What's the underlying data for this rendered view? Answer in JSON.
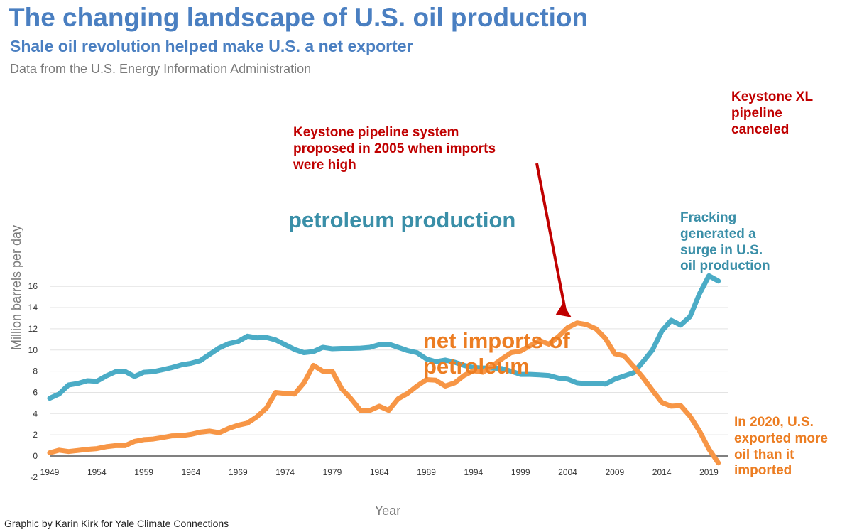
{
  "header": {
    "title": "The changing landscape of U.S. oil production",
    "subtitle": "Shale oil revolution helped make U.S. a net exporter",
    "source": "Data from the U.S. Energy Information Administration"
  },
  "credit": "Graphic by Karin Kirk for Yale Climate Connections",
  "annotations": {
    "keystone": "Keystone pipeline system\nproposed in 2005 when imports\nwere high",
    "keystone_xl": "Keystone XL\npipeline\ncanceled",
    "fracking": "Fracking\ngenerated a\nsurge in U.S.\noil production",
    "exported": "In 2020, U.S.\nexported more\noil than it\nimported"
  },
  "colors": {
    "production": "#4bacc6",
    "imports": "#f79646",
    "zero_line": "#808080",
    "grid": "#e3e3e3",
    "arrow": "#c00000"
  },
  "chart_data": {
    "type": "line",
    "title": "The changing landscape of U.S. oil production",
    "xlabel": "Year",
    "ylabel": "Million barrels per day",
    "ylim": [
      -2,
      16
    ],
    "yticks": [
      "-2",
      "0",
      "2",
      "4",
      "6",
      "8",
      "10",
      "12",
      "14",
      "16"
    ],
    "xticks": [
      "1949",
      "1954",
      "1959",
      "1964",
      "1969",
      "1974",
      "1979",
      "1984",
      "1989",
      "1994",
      "1999",
      "2004",
      "2009",
      "2014",
      "2019"
    ],
    "x": [
      1949,
      1950,
      1951,
      1952,
      1953,
      1954,
      1955,
      1956,
      1957,
      1958,
      1959,
      1960,
      1961,
      1962,
      1963,
      1964,
      1965,
      1966,
      1967,
      1968,
      1969,
      1970,
      1971,
      1972,
      1973,
      1974,
      1975,
      1976,
      1977,
      1978,
      1979,
      1980,
      1981,
      1982,
      1983,
      1984,
      1985,
      1986,
      1987,
      1988,
      1989,
      1990,
      1991,
      1992,
      1993,
      1994,
      1995,
      1996,
      1997,
      1998,
      1999,
      2000,
      2001,
      2002,
      2003,
      2004,
      2005,
      2006,
      2007,
      2008,
      2009,
      2010,
      2011,
      2012,
      2013,
      2014,
      2015,
      2016,
      2017,
      2018,
      2019,
      2020
    ],
    "series": [
      {
        "name": "petroleum production",
        "label": "petroleum production",
        "values": [
          5.45,
          5.85,
          6.7,
          6.85,
          7.1,
          7.05,
          7.55,
          7.95,
          7.98,
          7.5,
          7.9,
          7.95,
          8.15,
          8.35,
          8.6,
          8.75,
          9.0,
          9.6,
          10.2,
          10.6,
          10.8,
          11.3,
          11.15,
          11.18,
          10.95,
          10.5,
          10.05,
          9.75,
          9.85,
          10.25,
          10.12,
          10.15,
          10.15,
          10.18,
          10.25,
          10.5,
          10.55,
          10.25,
          9.95,
          9.75,
          9.15,
          8.9,
          9.05,
          8.85,
          8.55,
          8.35,
          8.3,
          8.3,
          8.25,
          8.0,
          7.7,
          7.7,
          7.65,
          7.6,
          7.35,
          7.25,
          6.9,
          6.82,
          6.85,
          6.78,
          7.25,
          7.55,
          7.85,
          8.9,
          10.0,
          11.8,
          12.8,
          12.35,
          13.15,
          15.3,
          17.0,
          16.5
        ]
      },
      {
        "name": "net imports of petroleum",
        "label": "net imports of\npetroleum",
        "values": [
          0.3,
          0.55,
          0.42,
          0.52,
          0.63,
          0.7,
          0.88,
          0.98,
          0.98,
          1.38,
          1.55,
          1.6,
          1.75,
          1.9,
          1.92,
          2.05,
          2.25,
          2.35,
          2.2,
          2.6,
          2.9,
          3.1,
          3.7,
          4.5,
          6.0,
          5.9,
          5.85,
          6.9,
          8.55,
          8.0,
          8.0,
          6.35,
          5.4,
          4.3,
          4.3,
          4.7,
          4.3,
          5.4,
          5.9,
          6.6,
          7.2,
          7.15,
          6.6,
          6.9,
          7.6,
          8.05,
          7.9,
          8.5,
          9.15,
          9.75,
          9.9,
          10.4,
          10.9,
          10.55,
          11.25,
          12.1,
          12.55,
          12.4,
          12.0,
          11.1,
          9.65,
          9.45,
          8.45,
          7.4,
          6.2,
          5.05,
          4.7,
          4.75,
          3.75,
          2.35,
          0.65,
          -0.65
        ]
      }
    ]
  }
}
